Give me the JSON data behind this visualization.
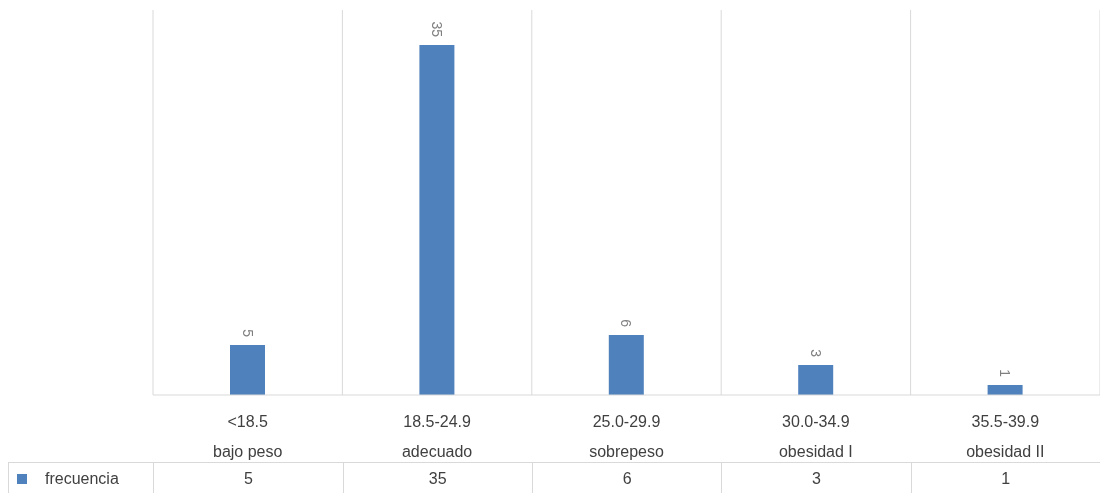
{
  "chart_data": {
    "type": "bar",
    "categories": [
      "<18.5\nbajo peso",
      "18.5-24.9\nadecuado",
      "25.0-29.9\nsobrepeso",
      "30.0-34.9\nobesidad I",
      "35.5-39.9\nobesidad II"
    ],
    "series": [
      {
        "name": "frecuencia",
        "color": "#4f81bd",
        "values": [
          5,
          35,
          6,
          3,
          1
        ],
        "value_labels": [
          "5",
          "35",
          "6",
          "3",
          "1"
        ]
      }
    ],
    "annotations": [
      "5",
      "35",
      "6",
      "3",
      "1"
    ],
    "grid": "x",
    "legend": "bottom left"
  }
}
